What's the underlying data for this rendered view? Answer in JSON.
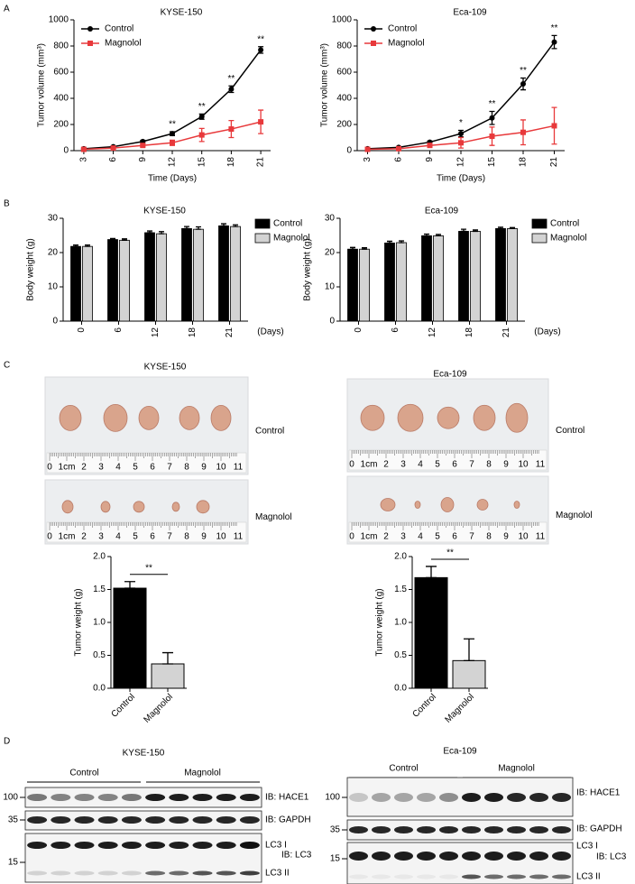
{
  "panel_labels": [
    "A",
    "B",
    "C",
    "D"
  ],
  "chart_data": [
    {
      "type": "line",
      "title": "KYSE-150",
      "xlabel": "Time (Days)",
      "ylabel": "Tumor volume (mm³)",
      "x": [
        3,
        6,
        9,
        12,
        15,
        18,
        21
      ],
      "xlim": [
        2,
        22
      ],
      "xticks": [
        3,
        6,
        9,
        12,
        15,
        18,
        21
      ],
      "ylim": [
        0,
        1000
      ],
      "yticks": [
        0,
        200,
        400,
        600,
        800,
        1000
      ],
      "legend": "upper left",
      "series": [
        {
          "name": "Control",
          "color": "#000000",
          "marker": "circle",
          "values": [
            15,
            30,
            70,
            130,
            260,
            470,
            770
          ],
          "errors": [
            5,
            5,
            8,
            15,
            20,
            25,
            25
          ]
        },
        {
          "name": "Magnolol",
          "color": "#e8393b",
          "marker": "square",
          "values": [
            10,
            20,
            40,
            60,
            120,
            165,
            220
          ],
          "errors": [
            5,
            5,
            10,
            20,
            50,
            65,
            90
          ]
        }
      ],
      "annotations": [
        {
          "x": 12,
          "text": "**"
        },
        {
          "x": 15,
          "text": "**"
        },
        {
          "x": 18,
          "text": "**"
        },
        {
          "x": 21,
          "text": "**"
        }
      ]
    },
    {
      "type": "line",
      "title": "Eca-109",
      "xlabel": "Time (Days)",
      "ylabel": "Tumor volume (mm³)",
      "x": [
        3,
        6,
        9,
        12,
        15,
        18,
        21
      ],
      "xlim": [
        2,
        22
      ],
      "xticks": [
        3,
        6,
        9,
        12,
        15,
        18,
        21
      ],
      "ylim": [
        0,
        1000
      ],
      "yticks": [
        0,
        200,
        400,
        600,
        800,
        1000
      ],
      "legend": "upper left",
      "series": [
        {
          "name": "Control",
          "color": "#000000",
          "marker": "circle",
          "values": [
            15,
            25,
            65,
            130,
            250,
            510,
            830
          ],
          "errors": [
            5,
            5,
            8,
            25,
            50,
            45,
            50
          ]
        },
        {
          "name": "Magnolol",
          "color": "#e8393b",
          "marker": "square",
          "values": [
            10,
            15,
            40,
            60,
            110,
            140,
            190
          ],
          "errors": [
            5,
            5,
            15,
            40,
            70,
            95,
            140
          ]
        }
      ],
      "annotations": [
        {
          "x": 12,
          "text": "*"
        },
        {
          "x": 15,
          "text": "**"
        },
        {
          "x": 18,
          "text": "**"
        },
        {
          "x": 21,
          "text": "**"
        }
      ]
    },
    {
      "type": "grouped-bar",
      "title": "KYSE-150",
      "xlabel": "(Days)",
      "ylabel": "Body weight (g)",
      "categories": [
        "0",
        "6",
        "12",
        "18",
        "21"
      ],
      "ylim": [
        0,
        30
      ],
      "yticks": [
        0,
        10,
        20,
        30
      ],
      "legend": "right",
      "series": [
        {
          "name": "Control",
          "color": "#000000",
          "values": [
            21.8,
            23.8,
            25.8,
            27,
            27.8
          ],
          "errors": [
            0.4,
            0.3,
            0.5,
            0.6,
            0.6
          ]
        },
        {
          "name": "Magnolol",
          "color": "#d3d3d3",
          "values": [
            21.8,
            23.6,
            25.5,
            26.8,
            27.6
          ],
          "errors": [
            0.4,
            0.4,
            0.6,
            0.7,
            0.5
          ]
        }
      ]
    },
    {
      "type": "grouped-bar",
      "title": "Eca-109",
      "xlabel": "(Days)",
      "ylabel": "Body weight (g)",
      "categories": [
        "0",
        "6",
        "12",
        "18",
        "21"
      ],
      "ylim": [
        0,
        30
      ],
      "yticks": [
        0,
        10,
        20,
        30
      ],
      "legend": "right",
      "series": [
        {
          "name": "Control",
          "color": "#000000",
          "values": [
            21,
            22.8,
            24.9,
            26.2,
            27
          ],
          "errors": [
            0.5,
            0.5,
            0.5,
            0.6,
            0.4
          ]
        },
        {
          "name": "Magnolol",
          "color": "#d3d3d3",
          "values": [
            21,
            22.9,
            24.9,
            26.2,
            27
          ],
          "errors": [
            0.4,
            0.5,
            0.4,
            0.4,
            0.3
          ]
        }
      ]
    },
    {
      "type": "bar",
      "ylabel": "Tumor weight (g)",
      "categories": [
        "Control",
        "Magnolol"
      ],
      "colors": [
        "#000000",
        "#d3d3d3"
      ],
      "values": [
        1.52,
        0.37
      ],
      "errors": [
        0.1,
        0.17
      ],
      "ylim": [
        0,
        2
      ],
      "yticks": [
        {
          "value": 0,
          "label": "0.0"
        },
        0.5,
        {
          "value": 1,
          "label": "1.0"
        },
        1.5,
        {
          "value": 2,
          "label": "2.0"
        }
      ],
      "annotation": "**"
    },
    {
      "type": "bar",
      "ylabel": "Tumor weight (g)",
      "categories": [
        "Control",
        "Magnolol"
      ],
      "colors": [
        "#000000",
        "#d3d3d3"
      ],
      "values": [
        1.68,
        0.42
      ],
      "errors": [
        0.17,
        0.33
      ],
      "ylim": [
        0,
        2
      ],
      "yticks": [
        {
          "value": 0,
          "label": "0.0"
        },
        0.5,
        {
          "value": 1,
          "label": "1.0"
        },
        1.5,
        {
          "value": 2,
          "label": "2.0"
        }
      ],
      "annotation": "**"
    }
  ],
  "ruler_labels": [
    "0",
    "1cm",
    "2",
    "3",
    "4",
    "5",
    "6",
    "7",
    "8",
    "9",
    "10",
    "11"
  ],
  "tumor_photos": [
    {
      "title": "KYSE-150",
      "rows": [
        "Control",
        "Magnolol"
      ]
    },
    {
      "title": "Eca-109",
      "rows": [
        "Control",
        "Magnolol"
      ]
    }
  ],
  "western_blots": [
    {
      "title": "KYSE-150",
      "groups": [
        "Control",
        "Magnolol"
      ],
      "markers": [
        "100",
        "35",
        "15"
      ],
      "labels": [
        "IB: HACE1",
        "IB: GAPDH",
        "LC3 I",
        "IB: LC3",
        "LC3 II"
      ]
    },
    {
      "title": "Eca-109",
      "groups": [
        "Control",
        "Magnolol"
      ],
      "markers": [
        "100",
        "35",
        "15"
      ],
      "labels": [
        "IB: HACE1",
        "IB: GAPDH",
        "LC3 I",
        "IB: LC3",
        "LC3 II"
      ]
    }
  ]
}
